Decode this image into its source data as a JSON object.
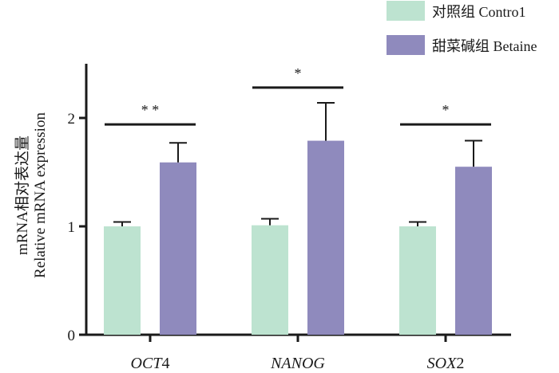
{
  "chart_data": {
    "type": "bar",
    "ylabel_lines": [
      "mRNA相对表达量",
      "Relative mRNA expression"
    ],
    "xlabel": "",
    "ylim": [
      0,
      2.5
    ],
    "yticks": [
      0,
      1,
      2
    ],
    "grid": false,
    "legend_position": "top-right",
    "categories": [
      {
        "italic": "OCT",
        "suffix": "4"
      },
      {
        "italic": "NANOG",
        "suffix": ""
      },
      {
        "italic": "SOX",
        "suffix": "2"
      }
    ],
    "series": [
      {
        "name": "对照组 Contro1",
        "color": "#bde3d0",
        "values": [
          1.0,
          1.01,
          1.0
        ],
        "errors": [
          0.04,
          0.06,
          0.04
        ]
      },
      {
        "name": "甜菜碱组 Betaine",
        "color": "#8f8abd",
        "values": [
          1.59,
          1.79,
          1.55
        ],
        "errors": [
          0.18,
          0.35,
          0.24
        ]
      }
    ],
    "significance": [
      {
        "category": 0,
        "label": "* *",
        "y": 1.94
      },
      {
        "category": 1,
        "label": "*",
        "y": 2.28
      },
      {
        "category": 2,
        "label": "*",
        "y": 1.94
      }
    ]
  }
}
